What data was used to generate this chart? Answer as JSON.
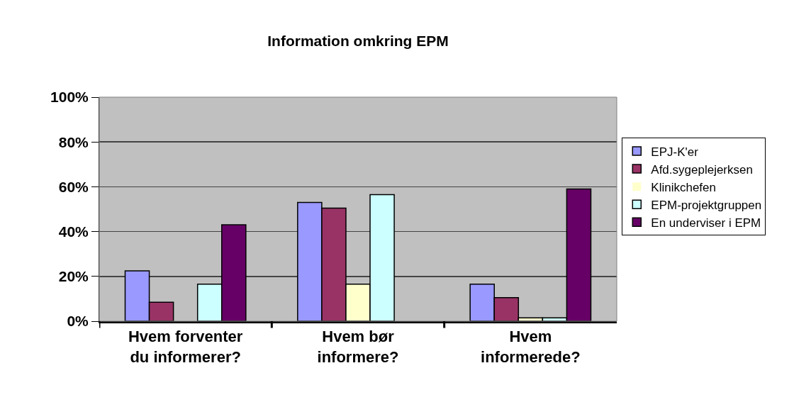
{
  "chart_data": {
    "type": "bar",
    "title": "Information omkring EPM",
    "categories": [
      "Hvem forventer du informerer?",
      "Hvem bør informere?",
      "Hvem informerede?"
    ],
    "series": [
      {
        "name": "EPJ-K'er",
        "color": "#9999ff",
        "values": [
          22.5,
          53,
          16.5
        ]
      },
      {
        "name": "Afd.sygeplejerksen",
        "color": "#993366",
        "values": [
          8.5,
          50.5,
          10.5
        ]
      },
      {
        "name": "Klinikchefen",
        "color": "#ffffcc",
        "values": [
          0,
          16.5,
          1.5
        ]
      },
      {
        "name": "EPM-projektgruppen",
        "color": "#ccffff",
        "values": [
          16.5,
          56.5,
          1.5
        ]
      },
      {
        "name": "En underviser i EPM",
        "color": "#660066",
        "values": [
          43,
          0,
          59
        ]
      }
    ],
    "ylim": [
      0,
      100
    ],
    "yticks": [
      {
        "value": 0,
        "label": "0%"
      },
      {
        "value": 20,
        "label": "20%"
      },
      {
        "value": 40,
        "label": "40%"
      },
      {
        "value": 60,
        "label": "60%"
      },
      {
        "value": 80,
        "label": "80%"
      },
      {
        "value": 100,
        "label": "100%"
      }
    ],
    "grid": "y",
    "legend": "right"
  }
}
